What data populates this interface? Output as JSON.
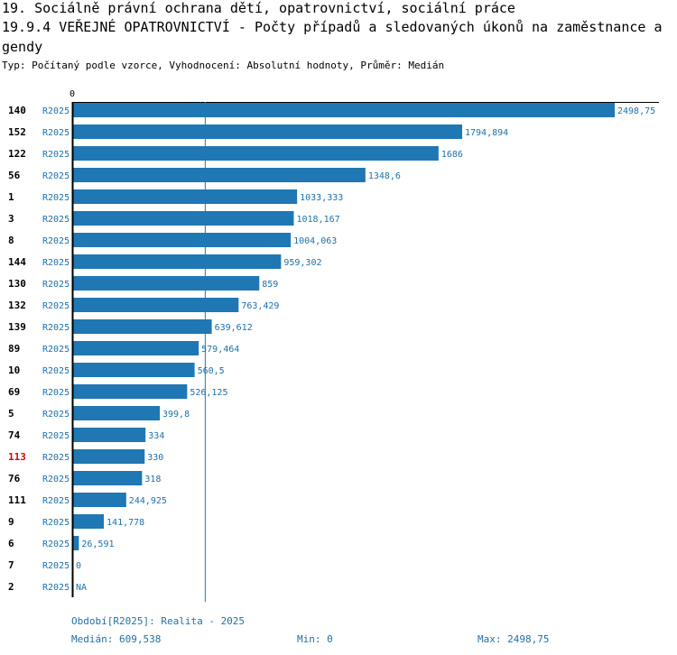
{
  "title_line1": "19. Sociálně právní ochrana dětí, opatrovnictví, sociální práce",
  "title_line2": "19.9.4 VEŘEJNÉ OPATROVNICTVÍ - Počty případů a sledovaných úkonů na zaměstnance a",
  "title_line3": "gendy",
  "subtitle": "Typ: Počítaný podle vzorce, Vyhodnocení: Absolutní hodnoty, Průměr: Medián",
  "colors": {
    "bar": "#1f77b4",
    "label": "#1f6fa8",
    "highlight": "#e00000",
    "axis": "#000000"
  },
  "chart_data": {
    "type": "bar",
    "orientation": "horizontal",
    "axis_zero_label": "0",
    "xlim": [
      0,
      2498.75
    ],
    "median": 609.538,
    "rows": [
      {
        "id": "140",
        "period": "R2025",
        "value": 2498.75,
        "label": "2498,75",
        "highlight": false
      },
      {
        "id": "152",
        "period": "R2025",
        "value": 1794.894,
        "label": "1794,894",
        "highlight": false
      },
      {
        "id": "122",
        "period": "R2025",
        "value": 1686,
        "label": "1686",
        "highlight": false
      },
      {
        "id": "56",
        "period": "R2025",
        "value": 1348.6,
        "label": "1348,6",
        "highlight": false
      },
      {
        "id": "1",
        "period": "R2025",
        "value": 1033.333,
        "label": "1033,333",
        "highlight": false
      },
      {
        "id": "3",
        "period": "R2025",
        "value": 1018.167,
        "label": "1018,167",
        "highlight": false
      },
      {
        "id": "8",
        "period": "R2025",
        "value": 1004.063,
        "label": "1004,063",
        "highlight": false
      },
      {
        "id": "144",
        "period": "R2025",
        "value": 959.302,
        "label": "959,302",
        "highlight": false
      },
      {
        "id": "130",
        "period": "R2025",
        "value": 859,
        "label": "859",
        "highlight": false
      },
      {
        "id": "132",
        "period": "R2025",
        "value": 763.429,
        "label": "763,429",
        "highlight": false
      },
      {
        "id": "139",
        "period": "R2025",
        "value": 639.612,
        "label": "639,612",
        "highlight": false
      },
      {
        "id": "89",
        "period": "R2025",
        "value": 579.464,
        "label": "579,464",
        "highlight": false
      },
      {
        "id": "10",
        "period": "R2025",
        "value": 560.5,
        "label": "560,5",
        "highlight": false
      },
      {
        "id": "69",
        "period": "R2025",
        "value": 526.125,
        "label": "526,125",
        "highlight": false
      },
      {
        "id": "5",
        "period": "R2025",
        "value": 399.8,
        "label": "399,8",
        "highlight": false
      },
      {
        "id": "74",
        "period": "R2025",
        "value": 334,
        "label": "334",
        "highlight": false
      },
      {
        "id": "113",
        "period": "R2025",
        "value": 330,
        "label": "330",
        "highlight": true
      },
      {
        "id": "76",
        "period": "R2025",
        "value": 318,
        "label": "318",
        "highlight": false
      },
      {
        "id": "111",
        "period": "R2025",
        "value": 244.925,
        "label": "244,925",
        "highlight": false
      },
      {
        "id": "9",
        "period": "R2025",
        "value": 141.778,
        "label": "141,778",
        "highlight": false
      },
      {
        "id": "6",
        "period": "R2025",
        "value": 26.591,
        "label": "26,591",
        "highlight": false
      },
      {
        "id": "7",
        "period": "R2025",
        "value": 0,
        "label": "0",
        "highlight": false
      },
      {
        "id": "2",
        "period": "R2025",
        "value": null,
        "label": "NA",
        "highlight": false
      }
    ]
  },
  "footer": {
    "period_note": "Období[R2025]: Realita - 2025",
    "median_text": "Medián: 609,538",
    "min_text": "Min: 0",
    "max_text": "Max: 2498,75"
  }
}
